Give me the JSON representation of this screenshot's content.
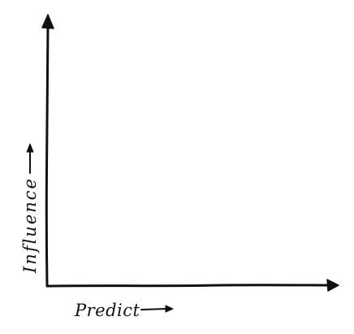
{
  "diagram": {
    "x_axis": {
      "label": "Predict"
    },
    "y_axis": {
      "label": "Influence"
    },
    "ink_color": "#111111",
    "background_color": "#ffffff"
  }
}
